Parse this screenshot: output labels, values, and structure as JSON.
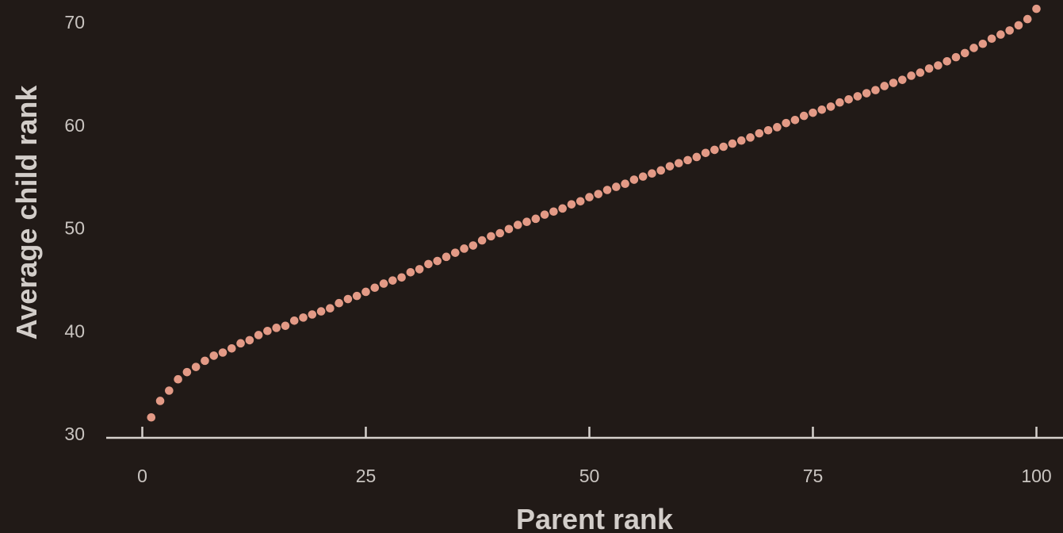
{
  "chart_data": {
    "type": "scatter",
    "xlabel": "Parent rank",
    "ylabel": "Average child rank",
    "xlim": [
      -4,
      101.5
    ],
    "ylim": [
      30,
      71.5
    ],
    "x_ticks": [
      0,
      25,
      50,
      75,
      100
    ],
    "y_ticks": [
      30,
      40,
      50,
      60,
      70
    ],
    "grid": false,
    "legend": "none",
    "colors": {
      "background": "#211a17",
      "points": "#e39a86",
      "axis": "#d6d1cd",
      "text": "#c9c4c0"
    },
    "x": [
      1,
      2,
      3,
      4,
      5,
      6,
      7,
      8,
      9,
      10,
      11,
      12,
      13,
      14,
      15,
      16,
      17,
      18,
      19,
      20,
      21,
      22,
      23,
      24,
      25,
      26,
      27,
      28,
      29,
      30,
      31,
      32,
      33,
      34,
      35,
      36,
      37,
      38,
      39,
      40,
      41,
      42,
      43,
      44,
      45,
      46,
      47,
      48,
      49,
      50,
      51,
      52,
      53,
      54,
      55,
      56,
      57,
      58,
      59,
      60,
      61,
      62,
      63,
      64,
      65,
      66,
      67,
      68,
      69,
      70,
      71,
      72,
      73,
      74,
      75,
      76,
      77,
      78,
      79,
      80,
      81,
      82,
      83,
      84,
      85,
      86,
      87,
      88,
      89,
      90,
      91,
      92,
      93,
      94,
      95,
      96,
      97,
      98,
      99,
      100
    ],
    "y": [
      31.6,
      33.2,
      34.2,
      35.3,
      36.0,
      36.5,
      37.1,
      37.6,
      37.9,
      38.3,
      38.8,
      39.1,
      39.6,
      40.0,
      40.3,
      40.5,
      41.0,
      41.3,
      41.6,
      41.9,
      42.2,
      42.7,
      43.1,
      43.4,
      43.8,
      44.2,
      44.6,
      44.9,
      45.2,
      45.7,
      46.0,
      46.5,
      46.8,
      47.2,
      47.6,
      48.0,
      48.3,
      48.8,
      49.2,
      49.5,
      49.9,
      50.3,
      50.6,
      50.9,
      51.3,
      51.6,
      51.9,
      52.3,
      52.6,
      53.0,
      53.3,
      53.7,
      54.0,
      54.3,
      54.7,
      55.0,
      55.3,
      55.6,
      56.0,
      56.3,
      56.6,
      56.9,
      57.3,
      57.6,
      57.9,
      58.2,
      58.5,
      58.8,
      59.2,
      59.5,
      59.8,
      60.2,
      60.5,
      60.9,
      61.2,
      61.5,
      61.8,
      62.2,
      62.5,
      62.8,
      63.1,
      63.4,
      63.8,
      64.1,
      64.4,
      64.8,
      65.1,
      65.5,
      65.8,
      66.2,
      66.6,
      67.0,
      67.5,
      67.9,
      68.4,
      68.8,
      69.2,
      69.7,
      70.3,
      71.3
    ]
  }
}
